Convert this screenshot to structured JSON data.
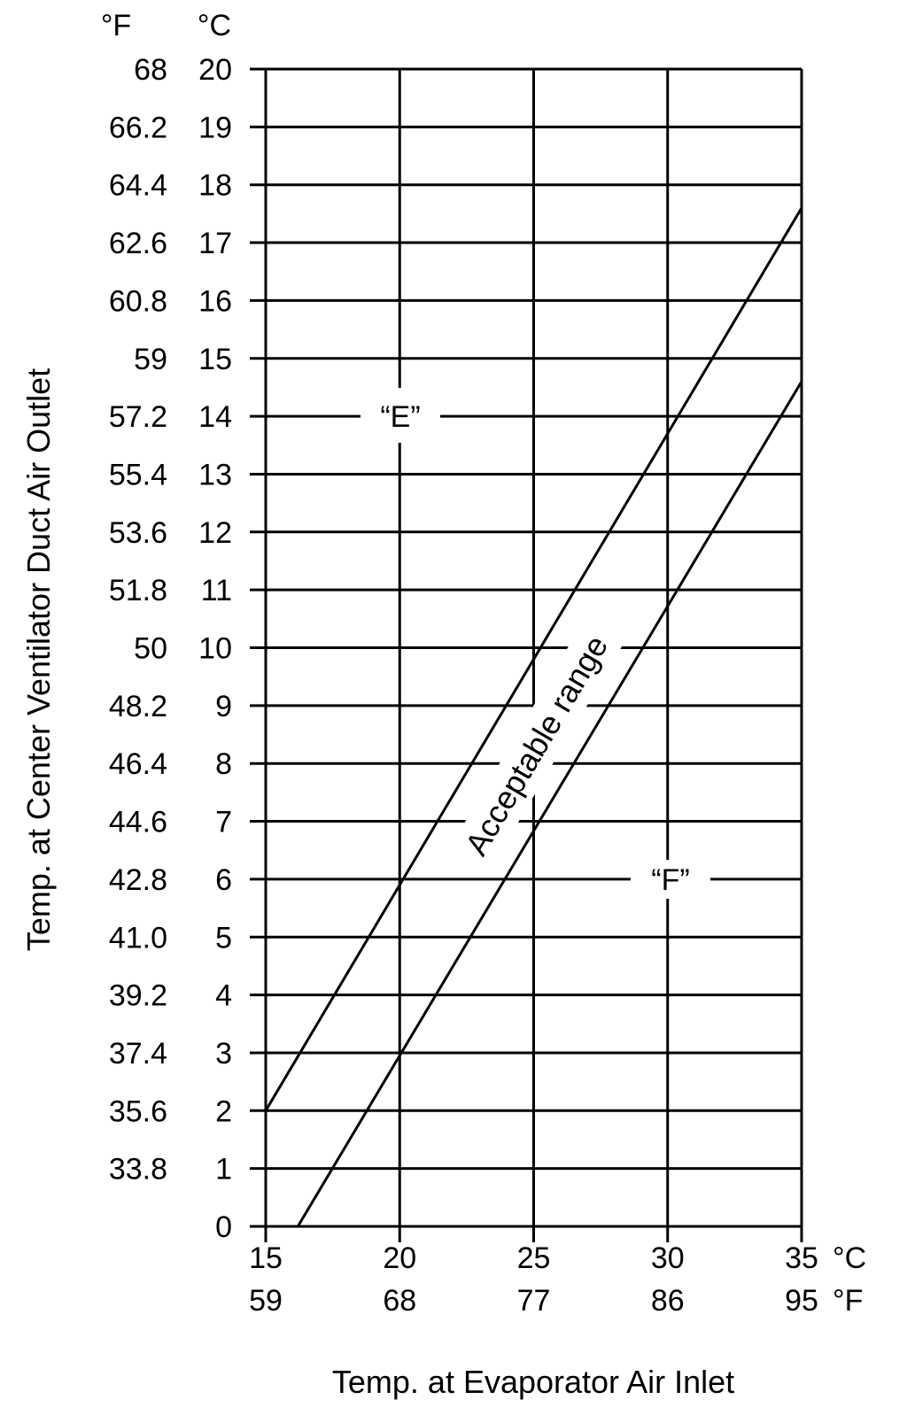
{
  "chart_data": {
    "type": "line",
    "title": "",
    "xlabel": "Temp. at Evaporator Air Inlet",
    "ylabel": "Temp. at Center Ventilator Duct Air Outlet",
    "xlim": [
      15,
      35
    ],
    "ylim": [
      0,
      20
    ],
    "grid": true,
    "x_ticks_c": [
      "15",
      "20",
      "25",
      "30",
      "35"
    ],
    "x_ticks_f": [
      "59",
      "68",
      "77",
      "86",
      "95"
    ],
    "x_unit_c": "°C",
    "x_unit_f": "°F",
    "y_ticks_c": [
      "0",
      "1",
      "2",
      "3",
      "4",
      "5",
      "6",
      "7",
      "8",
      "9",
      "10",
      "11",
      "12",
      "13",
      "14",
      "15",
      "16",
      "17",
      "18",
      "19",
      "20"
    ],
    "y_ticks_f": [
      "",
      "33.8",
      "35.6",
      "37.4",
      "39.2",
      "41.0",
      "42.8",
      "44.6",
      "46.4",
      "48.2",
      "50",
      "51.8",
      "53.6",
      "55.4",
      "57.2",
      "59",
      "60.8",
      "62.6",
      "64.4",
      "66.2",
      "68"
    ],
    "y_unit_f": "°F",
    "y_unit_c": "°C",
    "series": [
      {
        "name": "“E”",
        "x": [
          15,
          35
        ],
        "y": [
          2.0,
          17.6
        ]
      },
      {
        "name": "“F”",
        "x": [
          16.2,
          35
        ],
        "y": [
          0.0,
          14.6
        ]
      }
    ],
    "annotations": {
      "range": "Acceptable range"
    }
  }
}
